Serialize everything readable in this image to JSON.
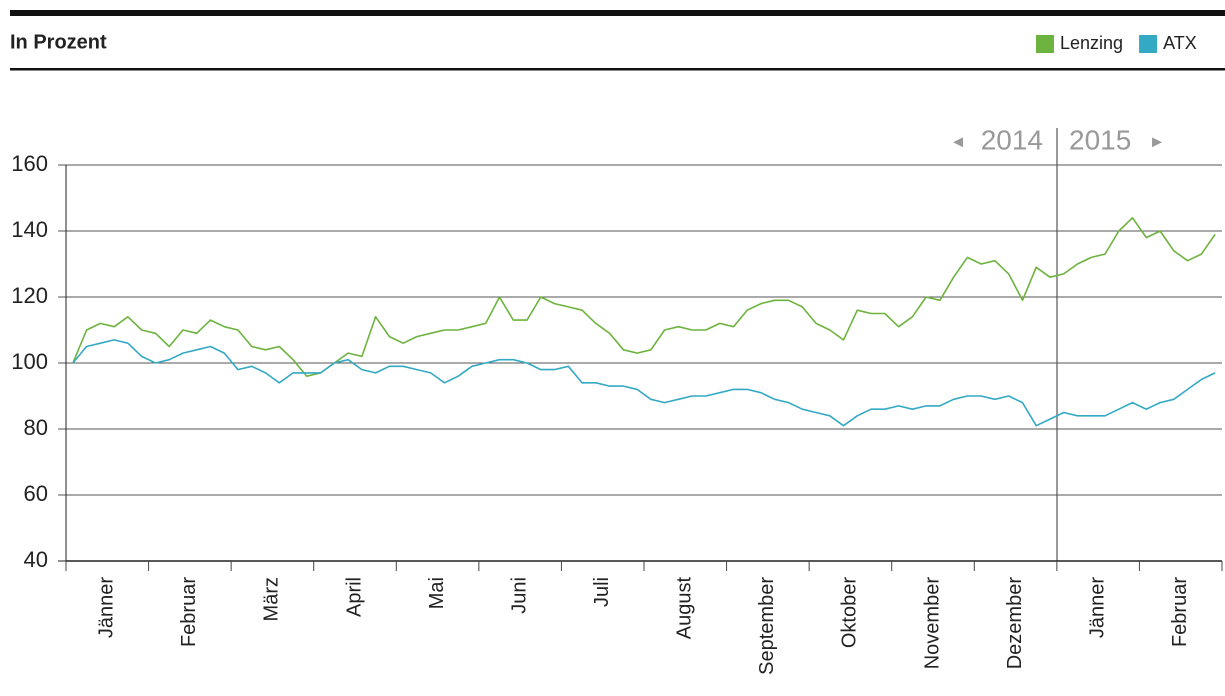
{
  "chart_data": {
    "type": "line",
    "title": "In Prozent",
    "year_labels": [
      "2014",
      "2015"
    ],
    "categories": [
      null,
      null,
      null,
      "Jänner",
      null,
      null,
      null,
      null,
      null,
      "Februar",
      null,
      null,
      null,
      null,
      null,
      "März",
      null,
      null,
      null,
      null,
      null,
      "April",
      null,
      null,
      null,
      null,
      null,
      "Mai",
      null,
      null,
      null,
      null,
      null,
      "Juni",
      null,
      null,
      null,
      null,
      null,
      "Juli",
      null,
      null,
      null,
      null,
      null,
      "August",
      null,
      null,
      null,
      null,
      null,
      "September",
      null,
      null,
      null,
      null,
      null,
      "Oktober",
      null,
      null,
      null,
      null,
      null,
      "November",
      null,
      null,
      null,
      null,
      null,
      "Dezember",
      null,
      null,
      null,
      null,
      null,
      "Jänner",
      null,
      null,
      null,
      null,
      null,
      "Februar",
      null,
      null
    ],
    "series": [
      {
        "name": "Lenzing",
        "color": "#6db33f",
        "values": [
          100,
          110,
          112,
          111,
          114,
          110,
          109,
          105,
          110,
          109,
          113,
          111,
          110,
          105,
          104,
          105,
          101,
          96,
          97,
          100,
          103,
          102,
          114,
          108,
          106,
          108,
          109,
          110,
          110,
          111,
          112,
          120,
          113,
          113,
          120,
          118,
          117,
          116,
          112,
          109,
          104,
          103,
          104,
          110,
          111,
          110,
          110,
          112,
          111,
          116,
          118,
          119,
          119,
          117,
          112,
          110,
          107,
          116,
          115,
          115,
          111,
          114,
          120,
          119,
          126,
          132,
          130,
          131,
          127,
          119,
          129,
          126,
          127,
          130,
          132,
          133,
          140,
          144,
          138,
          140,
          134,
          131,
          133,
          139
        ]
      },
      {
        "name": "ATX",
        "color": "#34a9c4",
        "values": [
          100,
          105,
          106,
          107,
          106,
          102,
          100,
          101,
          103,
          104,
          105,
          103,
          98,
          99,
          97,
          94,
          97,
          97,
          97,
          100,
          101,
          98,
          97,
          99,
          99,
          98,
          97,
          94,
          96,
          99,
          100,
          101,
          101,
          100,
          98,
          98,
          99,
          94,
          94,
          93,
          93,
          92,
          89,
          88,
          89,
          90,
          90,
          91,
          92,
          92,
          91,
          89,
          88,
          86,
          85,
          84,
          81,
          84,
          86,
          86,
          87,
          86,
          87,
          87,
          89,
          90,
          90,
          89,
          90,
          88,
          81,
          83,
          85,
          84,
          84,
          84,
          86,
          88,
          86,
          88,
          89,
          92,
          95,
          97
        ]
      }
    ],
    "ylim": [
      40,
      160
    ],
    "yticks": [
      40,
      60,
      80,
      100,
      120,
      140,
      160
    ],
    "grid": true
  }
}
